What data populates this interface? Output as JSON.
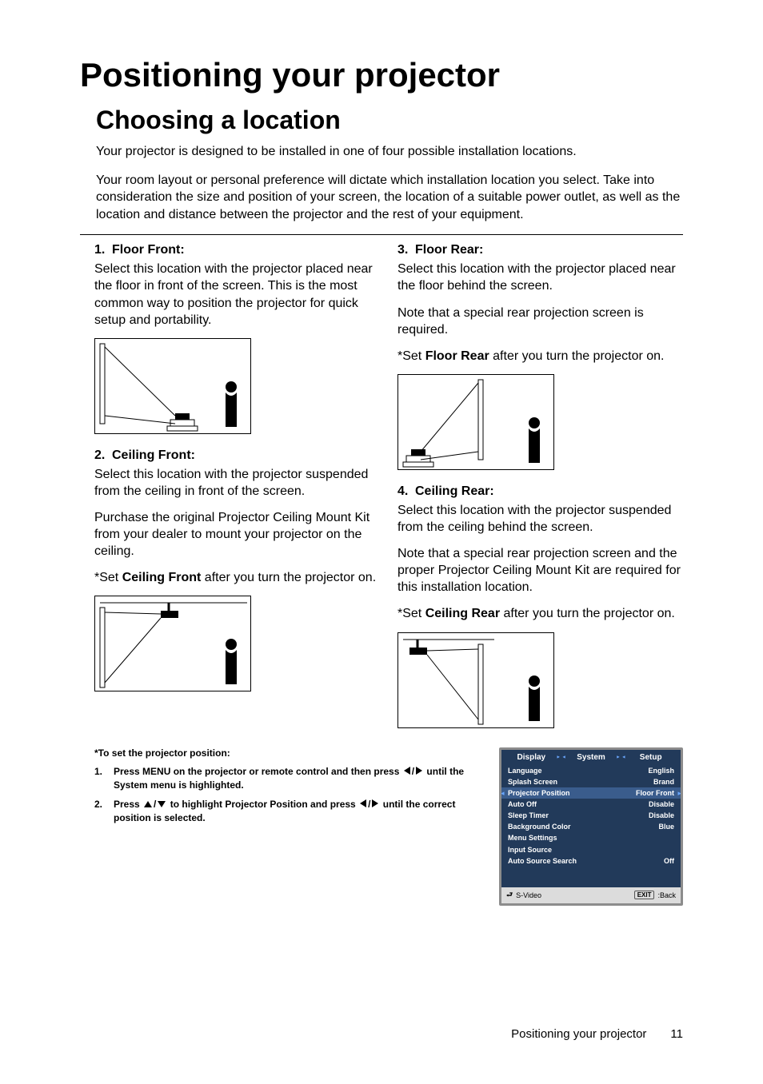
{
  "h1": "Positioning your projector",
  "h2": "Choosing a location",
  "intro1": "Your projector is designed to be installed in one of four possible installation locations.",
  "intro2": "Your room layout or personal preference will dictate which installation location you select. Take into consideration the size and position of your screen, the location of a suitable power outlet, as well as the location and distance between the projector and the rest of your equipment.",
  "loc": {
    "a": {
      "num": "1.",
      "title": "Floor Front:",
      "p": "Select this location with the projector placed near the floor in front of the screen. This is the most common way to position the projector for quick setup and portability."
    },
    "b": {
      "num": "2.",
      "title": "Ceiling Front:",
      "p1": "Select this location with the projector suspended from the ceiling in front of the screen.",
      "p2": "Purchase the original Projector Ceiling Mount Kit from your dealer to mount your projector on the ceiling.",
      "set_pre": "*Set ",
      "set_bold": "Ceiling Front",
      "set_post": " after you turn the projector on."
    },
    "c": {
      "num": "3.",
      "title": "Floor Rear:",
      "p1": "Select this location with the projector placed near the floor behind the screen.",
      "p2": "Note that a special rear projection screen is required.",
      "set_pre": "*Set ",
      "set_bold": "Floor Rear",
      "set_post": " after you turn the projector on."
    },
    "d": {
      "num": "4.",
      "title": "Ceiling Rear:",
      "p1": "Select this location with the projector suspended from the ceiling behind the screen.",
      "p2": "Note that a special rear projection screen and the proper Projector Ceiling Mount Kit are required for this installation location.",
      "set_pre": "*Set ",
      "set_bold": "Ceiling Rear",
      "set_post": " after you turn the projector on."
    }
  },
  "footnotes": {
    "head": "*To set the projector position:",
    "s1": {
      "num": "1.",
      "a": "Press MENU on the projector or remote control and then press ",
      "b": " until the System menu is highlighted."
    },
    "s2": {
      "num": "2.",
      "a": "Press ",
      "b": " to highlight Projector Position and press ",
      "c": " until the correct position is selected."
    }
  },
  "menu": {
    "tabs": [
      "Display",
      "System",
      "Setup"
    ],
    "rows": [
      {
        "k": "Language",
        "v": "English",
        "hl": false
      },
      {
        "k": "Splash Screen",
        "v": "Brand",
        "hl": false
      },
      {
        "k": "Projector Position",
        "v": "Floor Front",
        "hl": true
      },
      {
        "k": "Auto Off",
        "v": "Disable",
        "hl": false
      },
      {
        "k": "Sleep Timer",
        "v": "Disable",
        "hl": false
      },
      {
        "k": "Background Color",
        "v": "Blue",
        "hl": false
      },
      {
        "k": "Menu Settings",
        "v": "",
        "hl": false
      },
      {
        "k": "Input Source",
        "v": "",
        "hl": false
      },
      {
        "k": "Auto Source Search",
        "v": "Off",
        "hl": false
      }
    ],
    "source": "S-Video",
    "exit": "EXIT",
    "back": ":Back"
  },
  "footer": {
    "label": "Positioning your projector",
    "page": "11"
  },
  "colors": {
    "menu_bg": "#223a5a",
    "menu_hl": "#3a5c8c",
    "menu_border": "#8c8c8c",
    "menu_footer_bg": "#dcdcdc",
    "tab_arrow": "#6aa7ff"
  }
}
